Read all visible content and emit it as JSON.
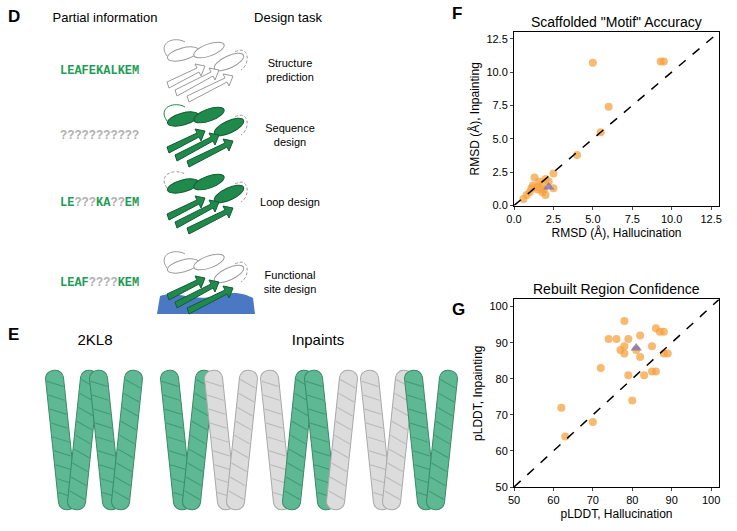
{
  "panel_d": {
    "panel": "D",
    "headers": [
      "Partial information",
      "Design task"
    ],
    "rows": [
      {
        "sequence": "LEAFEKALKEM",
        "task": [
          "Structure",
          "prediction"
        ]
      },
      {
        "sequence": "???????????",
        "task": [
          "Sequence",
          "design"
        ]
      },
      {
        "sequence": "LE???KA??EM",
        "task": [
          "Loop design"
        ]
      },
      {
        "sequence": "LEAF????KEM",
        "task": [
          "Functional",
          "site design"
        ]
      }
    ]
  },
  "panel_e": {
    "panel": "E",
    "native": "2KL8",
    "inpaints": "Inpaints"
  },
  "chart_data": [
    {
      "panel": "F",
      "type": "scatter",
      "title": "Scaffolded \"Motif\" Accuracy",
      "x_label": "RMSD (Å), Hallucination",
      "y_label": "RMSD (Å), Inpainting",
      "xlim": [
        0,
        13
      ],
      "ylim": [
        0,
        13
      ],
      "xticks": [
        {
          "value": 0,
          "label": "0.0"
        },
        2.5,
        {
          "value": 5,
          "label": "5.0"
        },
        7.5,
        {
          "value": 10,
          "label": "10.0"
        },
        12.5
      ],
      "yticks": [
        {
          "value": 0,
          "label": "0.0"
        },
        2.5,
        {
          "value": 5,
          "label": "5.0"
        },
        7.5,
        {
          "value": 10,
          "label": "10.0"
        },
        12.5
      ],
      "series": [
        {
          "type": "scatter",
          "color": "#f5a142",
          "marker": "circle",
          "x": [
            0.6,
            0.8,
            1.0,
            1.1,
            1.2,
            1.3,
            1.5,
            1.6,
            1.8,
            1.8,
            2.0,
            2.2,
            2.5,
            2.5,
            2.0,
            4.0,
            5.0,
            5.5,
            6.0,
            9.3,
            9.5,
            1.5,
            1.9
          ],
          "y": [
            0.5,
            0.8,
            1.0,
            1.3,
            1.5,
            2.1,
            1.2,
            1.8,
            1.0,
            1.6,
            2.0,
            1.8,
            1.3,
            2.4,
            0.8,
            3.8,
            10.7,
            5.5,
            7.4,
            10.8,
            10.8,
            1.4,
            1.2
          ]
        },
        {
          "type": "scatter",
          "color": "#7a6bb0",
          "marker": "triangle",
          "x": [
            2.2
          ],
          "y": [
            1.4
          ]
        },
        {
          "type": "line",
          "color": "#000000",
          "line_style": "dashed",
          "x": [
            0,
            13
          ],
          "y": [
            0,
            13
          ]
        }
      ]
    },
    {
      "panel": "G",
      "type": "scatter",
      "title": "Rebuilt Region Confidence",
      "x_label": "pLDDT, Hallucination",
      "y_label": "pLDDT, Inpainting",
      "xlim": [
        50,
        102
      ],
      "ylim": [
        50,
        102
      ],
      "xticks": [
        50,
        60,
        70,
        80,
        90,
        100
      ],
      "yticks": [
        50,
        60,
        70,
        80,
        90,
        100
      ],
      "series": [
        {
          "type": "scatter",
          "color": "#f5a142",
          "marker": "circle",
          "x": [
            62,
            63,
            70,
            72,
            74,
            76,
            77,
            78,
            78,
            78,
            79,
            79,
            80,
            81,
            82,
            82,
            83,
            85,
            85,
            86,
            86,
            87,
            88,
            88,
            89
          ],
          "y": [
            72,
            64,
            68,
            83,
            91,
            91,
            88,
            87,
            89,
            96,
            81,
            91,
            74,
            88,
            86,
            92,
            81,
            89,
            82,
            82,
            94,
            93,
            93,
            87,
            87
          ]
        },
        {
          "type": "scatter",
          "color": "#7a6bb0",
          "marker": "triangle",
          "x": [
            81
          ],
          "y": [
            88.5
          ]
        },
        {
          "type": "line",
          "color": "#000000",
          "line_style": "dashed",
          "x": [
            50,
            102
          ],
          "y": [
            50,
            102
          ]
        }
      ]
    }
  ]
}
